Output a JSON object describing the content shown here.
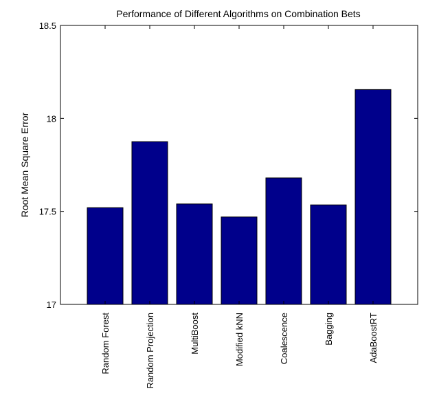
{
  "chart_data": {
    "type": "bar",
    "title": "Performance of Different Algorithms on Combination Bets",
    "xlabel": "",
    "ylabel": "Root Mean Square Error",
    "categories": [
      "Random Forest",
      "Random Projection",
      "MultiBoost",
      "Modified kNN",
      "Coalescence",
      "Bagging",
      "AdaBoostRT"
    ],
    "values": [
      17.52,
      17.875,
      17.54,
      17.47,
      17.68,
      17.535,
      18.155
    ],
    "ylim": [
      17,
      18.5
    ],
    "yticks": [
      17,
      17.5,
      18,
      18.5
    ],
    "ytick_labels": [
      "17",
      "17.5",
      "18",
      "18.5"
    ],
    "grid": false,
    "bar_color": "#00008b"
  }
}
